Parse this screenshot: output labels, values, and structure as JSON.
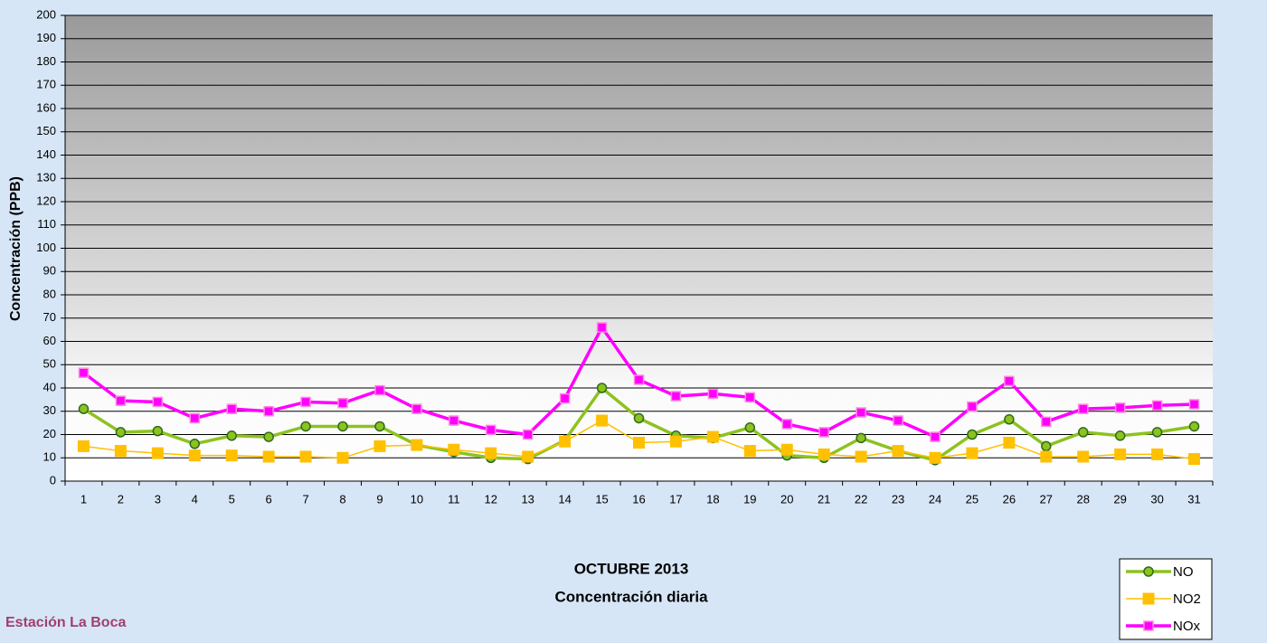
{
  "chart_data": {
    "type": "line",
    "title": "OCTUBRE 2013",
    "subtitle": "Concentración diaria",
    "y_label": "Concentración  (PPB)",
    "annotations": [
      "Estación La Boca"
    ],
    "categories": [
      "1",
      "2",
      "3",
      "4",
      "5",
      "6",
      "7",
      "8",
      "9",
      "10",
      "11",
      "12",
      "13",
      "14",
      "15",
      "16",
      "17",
      "18",
      "19",
      "20",
      "21",
      "22",
      "23",
      "24",
      "25",
      "26",
      "27",
      "28",
      "29",
      "30",
      "31"
    ],
    "series": [
      {
        "name": "NO",
        "color": "#8dc21f",
        "values": [
          31,
          21,
          21.5,
          16,
          19.5,
          19,
          23.5,
          23.5,
          23.5,
          15.5,
          12.5,
          10,
          9.5,
          17.5,
          40,
          27,
          19.5,
          18.5,
          23,
          11,
          10,
          18.5,
          13,
          9,
          20,
          26.5,
          15,
          21,
          19.5,
          21,
          23.5
        ]
      },
      {
        "name": "NO2",
        "color": "#ffc000",
        "values": [
          15,
          13,
          12,
          11,
          11,
          10.5,
          10.5,
          10,
          15,
          15.5,
          13.5,
          12,
          10.5,
          17,
          26,
          16.5,
          17,
          19,
          13,
          13.5,
          11.5,
          10.5,
          13,
          10,
          12,
          16.5,
          10.5,
          10.5,
          11.5,
          11.5,
          9.5
        ]
      },
      {
        "name": "NOx",
        "color": "#ff00ff",
        "values": [
          46.5,
          34.5,
          34,
          27,
          31,
          30,
          34,
          33.5,
          39,
          31,
          26,
          22,
          20,
          35.5,
          66,
          43.5,
          36.5,
          37.5,
          36,
          24.5,
          21,
          29.5,
          26,
          19,
          32,
          43,
          25.5,
          31,
          31.5,
          32.5,
          33
        ]
      }
    ],
    "ylim": [
      0,
      200
    ],
    "yticks": [
      0,
      10,
      20,
      30,
      40,
      50,
      60,
      70,
      80,
      90,
      100,
      110,
      120,
      130,
      140,
      150,
      160,
      170,
      180,
      190,
      200
    ],
    "grid": true,
    "legend": "bottom-right"
  }
}
